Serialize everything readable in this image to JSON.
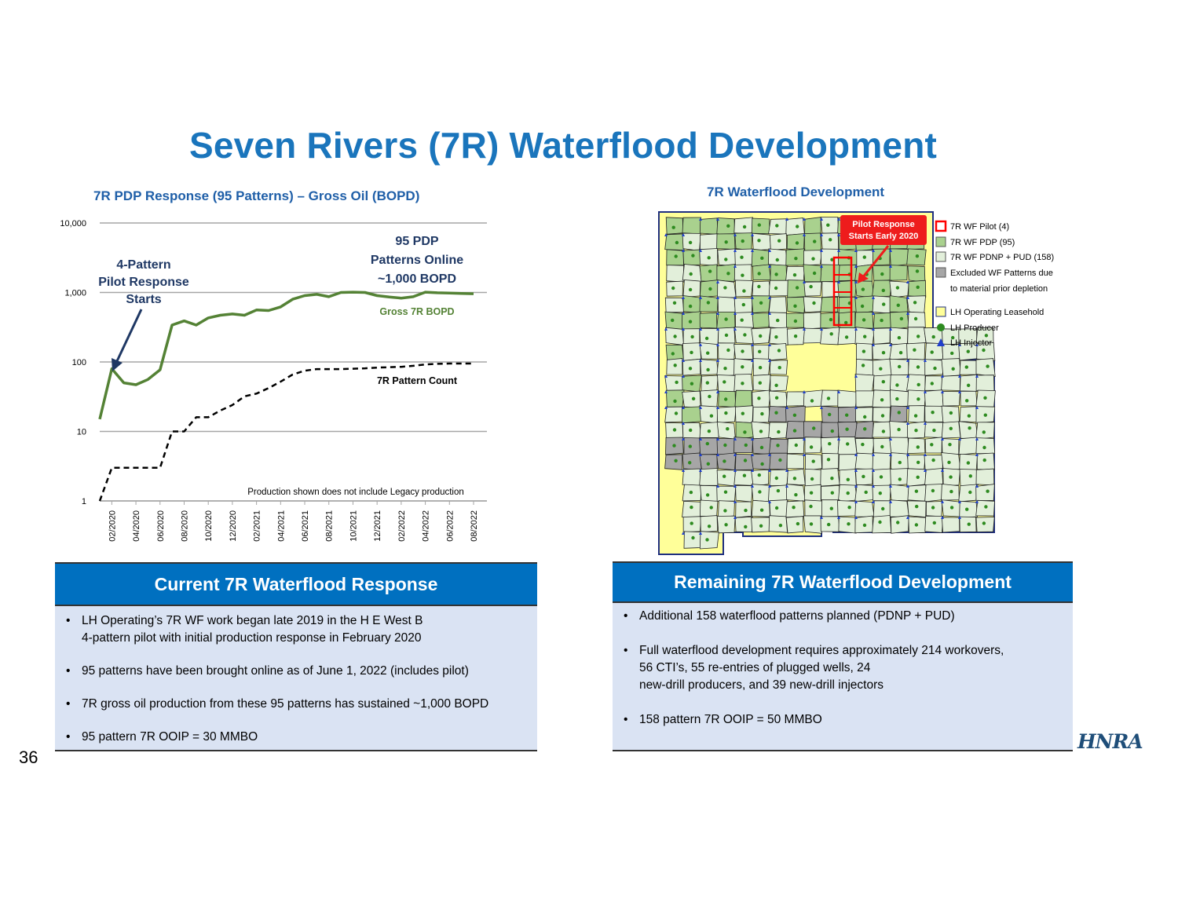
{
  "page_title": "Seven Rivers (7R) Waterflood Development",
  "page_number": "36",
  "logo_text": "HNRA",
  "chart": {
    "title": "7R PDP Response (95 Patterns) – Gross Oil (BOPD)",
    "annotation_pilot": "4-Pattern\nPilot Response\nStarts",
    "annotation_online": "95 PDP\nPatterns Online\n~1,000 BOPD",
    "series_label_oil": "Gross 7R BOPD",
    "series_label_count": "7R Pattern Count",
    "footnote": "Production shown does not include Legacy production"
  },
  "chart_data": {
    "type": "line",
    "title": "7R PDP Response (95 Patterns) – Gross Oil (BOPD)",
    "y_scale": "log",
    "ylim": [
      1,
      10000
    ],
    "y_ticks": [
      "1",
      "10",
      "100",
      "1,000",
      "10,000"
    ],
    "x_ticks": [
      "02/2020",
      "04/2020",
      "06/2020",
      "08/2020",
      "10/2020",
      "12/2020",
      "02/2021",
      "04/2021",
      "06/2021",
      "08/2021",
      "10/2021",
      "12/2021",
      "02/2022",
      "04/2022",
      "06/2022",
      "08/2022"
    ],
    "x": [
      "01/2020",
      "02/2020",
      "03/2020",
      "04/2020",
      "05/2020",
      "06/2020",
      "07/2020",
      "08/2020",
      "09/2020",
      "10/2020",
      "11/2020",
      "12/2020",
      "01/2021",
      "02/2021",
      "03/2021",
      "04/2021",
      "05/2021",
      "06/2021",
      "07/2021",
      "08/2021",
      "09/2021",
      "10/2021",
      "11/2021",
      "12/2021",
      "01/2022",
      "02/2022",
      "03/2022",
      "04/2022",
      "05/2022",
      "06/2022",
      "07/2022",
      "08/2022"
    ],
    "grid": true,
    "series": [
      {
        "name": "Gross 7R BOPD",
        "color": "#548235",
        "style": "solid",
        "values": [
          15,
          80,
          50,
          47,
          56,
          77,
          340,
          390,
          340,
          430,
          470,
          490,
          470,
          560,
          550,
          620,
          800,
          900,
          940,
          870,
          1000,
          1010,
          1000,
          900,
          860,
          830,
          870,
          1010,
          990,
          980,
          970,
          960
        ]
      },
      {
        "name": "7R Pattern Count",
        "color": "#000000",
        "style": "dashed",
        "values": [
          1,
          3,
          3,
          3,
          3,
          3,
          10,
          10,
          16,
          16,
          20,
          24,
          32,
          35,
          42,
          52,
          66,
          75,
          79,
          79,
          79,
          80,
          81,
          83,
          84,
          85,
          88,
          92,
          94,
          95,
          95,
          95
        ]
      }
    ]
  },
  "map": {
    "title": "7R Waterflood Development",
    "callout": "Pilot Response\nStarts Early 2020",
    "legend": [
      {
        "label": "7R WF Pilot (4)",
        "symbol": "red-square"
      },
      {
        "label": "7R WF PDP (95)",
        "symbol": "green-square"
      },
      {
        "label": "7R WF PDNP + PUD (158)",
        "symbol": "light-square"
      },
      {
        "label": "Excluded WF Patterns due\nto material prior depletion",
        "symbol": "gray-square"
      },
      {
        "label": "LH Operating Leasehold",
        "symbol": "yellow-square"
      },
      {
        "label": "LH Producer",
        "symbol": "green-dot"
      },
      {
        "label": "LH Injector",
        "symbol": "blue-triangle"
      }
    ],
    "colors": {
      "pilot": "#ff0000",
      "pdp": "#a9d18e",
      "pdnp": "#e2efda",
      "excluded": "#a6a6a6",
      "leasehold": "#ffff99",
      "producer": "#2e8b20",
      "injector": "#1f3fcc"
    }
  },
  "left_panel": {
    "heading": "Current 7R Waterflood Response",
    "bullets": [
      "LH Operating’s 7R WF work began late 2019 in the H E West B\n4-pattern pilot with initial production response in February 2020",
      "95 patterns have been brought online as of June 1, 2022 (includes pilot)",
      "7R gross oil production from these 95 patterns has sustained ~1,000 BOPD",
      "95 pattern 7R OOIP = 30 MMBO"
    ]
  },
  "right_panel": {
    "heading": "Remaining 7R Waterflood Development",
    "bullets": [
      "Additional 158 waterflood patterns planned (PDNP + PUD)",
      "Full waterflood development requires approximately 214 workovers,\n56 CTI’s, 55 re-entries of plugged wells, 24\nnew-drill producers, and 39 new-drill injectors",
      "158 pattern 7R OOIP = 50 MMBO"
    ]
  }
}
